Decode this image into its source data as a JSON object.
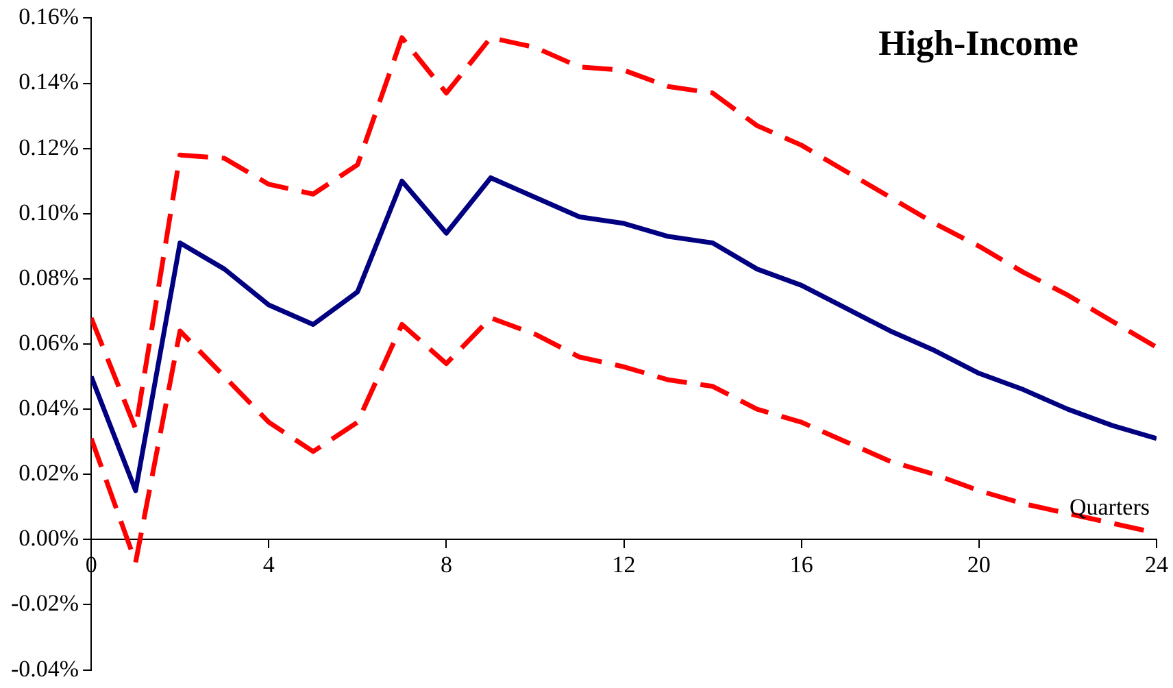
{
  "chart_data": {
    "type": "line",
    "title": "High-Income",
    "xlabel": "Quarters",
    "x": [
      0,
      1,
      2,
      3,
      4,
      5,
      6,
      7,
      8,
      9,
      10,
      11,
      12,
      13,
      14,
      15,
      16,
      17,
      18,
      19,
      20,
      21,
      22,
      23,
      24
    ],
    "series": [
      {
        "color": "#ff0000",
        "line_style": "dashed",
        "values": [
          0.068,
          0.034,
          0.118,
          0.117,
          0.109,
          0.106,
          0.115,
          0.154,
          0.137,
          0.154,
          0.151,
          0.145,
          0.144,
          0.139,
          0.137,
          0.127,
          0.121,
          0.113,
          0.105,
          0.097,
          0.09,
          0.082,
          0.075,
          0.067,
          0.059
        ]
      },
      {
        "color": "#ff0000",
        "line_style": "dashed",
        "values": [
          0.031,
          -0.007,
          0.064,
          0.05,
          0.036,
          0.027,
          0.036,
          0.066,
          0.054,
          0.068,
          0.063,
          0.056,
          0.053,
          0.049,
          0.047,
          0.04,
          0.036,
          0.03,
          0.024,
          0.02,
          0.015,
          0.011,
          0.008,
          0.005,
          0.002
        ]
      },
      {
        "color": "#000080",
        "line_style": "solid",
        "values": [
          0.05,
          0.015,
          0.091,
          0.083,
          0.072,
          0.066,
          0.076,
          0.11,
          0.094,
          0.111,
          0.105,
          0.099,
          0.097,
          0.093,
          0.091,
          0.083,
          0.078,
          0.071,
          0.064,
          0.058,
          0.051,
          0.046,
          0.04,
          0.035,
          0.031
        ]
      }
    ],
    "xlim": [
      0,
      24
    ],
    "xticks": [
      0,
      4,
      8,
      12,
      16,
      20,
      24
    ],
    "ylim": [
      -0.04,
      0.16
    ],
    "yticks": [
      {
        "value": -0.04,
        "label": "-0.04%"
      },
      {
        "value": -0.02,
        "label": "-0.02%"
      },
      {
        "value": 0,
        "label": "0.00%"
      },
      {
        "value": 0.02,
        "label": "0.02%"
      },
      {
        "value": 0.04,
        "label": "0.04%"
      },
      {
        "value": 0.06,
        "label": "0.06%"
      },
      {
        "value": 0.08,
        "label": "0.08%"
      },
      {
        "value": 0.1,
        "label": "0.10%"
      },
      {
        "value": 0.12,
        "label": "0.12%"
      },
      {
        "value": 0.14,
        "label": "0.14%"
      },
      {
        "value": 0.16,
        "label": "0.16%"
      }
    ],
    "grid": false,
    "legend": false,
    "marker": "none"
  }
}
